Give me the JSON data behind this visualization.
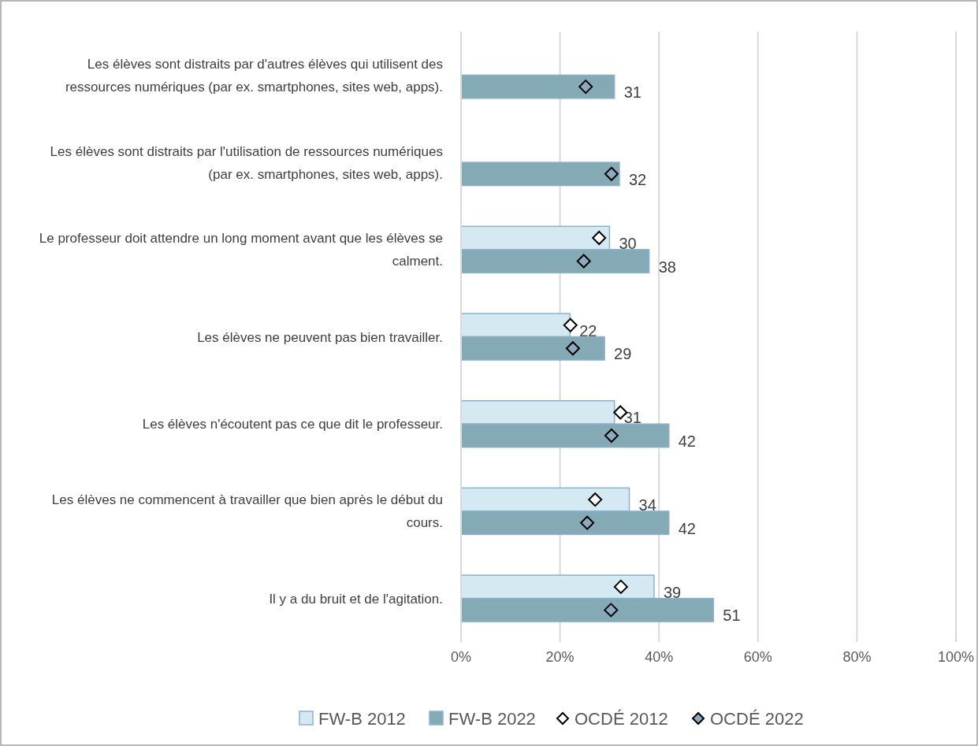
{
  "chart_data": {
    "type": "bar",
    "orientation": "horizontal",
    "categories": [
      "Les élèves sont distraits par d'autres élèves qui utilisent des ressources numériques (par ex. smartphones, sites web, apps).",
      "Les élèves sont distraits par l'utilisation de ressources numériques (par ex. smartphones, sites web, apps).",
      "Le professeur doit attendre un long moment avant que les élèves se calment.",
      "Les élèves ne peuvent pas bien travailler.",
      "Les élèves n'écoutent pas ce que dit le professeur.",
      "Les élèves ne commencent à travailler que bien après le début du cours.",
      "Il y a du bruit et de l'agitation."
    ],
    "series": [
      {
        "name": "FW-B 2012",
        "color": "#d4e9f2",
        "values": [
          null,
          null,
          30,
          22,
          31,
          34,
          39
        ],
        "value_labels": [
          null,
          null,
          "30",
          "22",
          "31",
          "34",
          "39"
        ]
      },
      {
        "name": "FW-B 2022",
        "color": "#84abb5",
        "values": [
          31,
          32,
          38,
          29,
          42,
          42,
          51
        ],
        "value_labels": [
          "31",
          "32",
          "38",
          "29",
          "42",
          "42",
          "51"
        ]
      },
      {
        "name": "OCDÉ 2012",
        "type": "scatter",
        "color": "#ffffff",
        "values": [
          null,
          null,
          27.9,
          22.1,
          32.2,
          27.1,
          32.3
        ]
      },
      {
        "name": "OCDÉ 2022",
        "type": "scatter",
        "color": "#8eaac0",
        "values": [
          25.2,
          30.4,
          24.8,
          22.6,
          30.4,
          25.5,
          30.3
        ]
      }
    ],
    "xlim": [
      0,
      100
    ],
    "xticks": [
      {
        "value": 0,
        "label": "0%"
      },
      {
        "value": 20,
        "label": "20%"
      },
      {
        "value": 40,
        "label": "40%"
      },
      {
        "value": 60,
        "label": "60%"
      },
      {
        "value": 80,
        "label": "80%"
      },
      {
        "value": 100,
        "label": "100%"
      }
    ],
    "grid": "x",
    "legend": "bottom",
    "marker": "diamond"
  }
}
